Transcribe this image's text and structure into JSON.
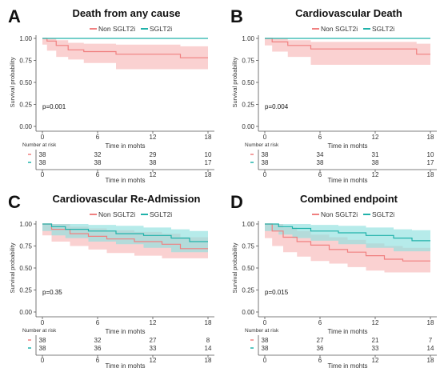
{
  "legend_labels": [
    "Non SGLT2i",
    "SGLT2i"
  ],
  "colors": {
    "non_sglt2i": "#f08080",
    "sglt2i": "#20b2aa",
    "non_band": "#f7b8b8",
    "sglt_band": "#8fe0de",
    "axis": "#555555",
    "text": "#333333"
  },
  "chart_data": [
    {
      "type": "line",
      "panel_letter": "A",
      "title": "Death from any cause",
      "xlabel": "Time in mohts",
      "ylabel": "Survival probability",
      "xlim": [
        0,
        18
      ],
      "ylim": [
        0,
        1
      ],
      "x_ticks": [
        0,
        6,
        12,
        18
      ],
      "y_ticks": [
        "0.00",
        "0.25",
        "0.50",
        "0.75",
        "1.00"
      ],
      "pvalue": "p=0.001",
      "risk_title": "Number at risk",
      "series": [
        {
          "name": "Non SGLT2i",
          "x": [
            0,
            0.5,
            1.5,
            2.8,
            4.5,
            8,
            15,
            18
          ],
          "y": [
            1.0,
            0.97,
            0.92,
            0.87,
            0.85,
            0.82,
            0.78,
            0.78
          ],
          "lower": [
            1.0,
            0.93,
            0.86,
            0.79,
            0.76,
            0.72,
            0.65,
            0.65
          ],
          "upper": [
            1.0,
            1.0,
            0.98,
            0.95,
            0.94,
            0.93,
            0.91,
            0.91
          ],
          "risk": [
            "38",
            "32",
            "29",
            "10"
          ]
        },
        {
          "name": "SGLT2i",
          "x": [
            0,
            18
          ],
          "y": [
            1.0,
            1.0
          ],
          "lower": [
            1.0,
            1.0
          ],
          "upper": [
            1.0,
            1.0
          ],
          "risk": [
            "38",
            "38",
            "38",
            "17"
          ]
        }
      ]
    },
    {
      "type": "line",
      "panel_letter": "B",
      "title": "Cardiovascular Death",
      "xlabel": "Time in mohts",
      "ylabel": "Survival probability",
      "xlim": [
        0,
        18
      ],
      "ylim": [
        0,
        1
      ],
      "x_ticks": [
        0,
        6,
        12,
        18
      ],
      "y_ticks": [
        "0.00",
        "0.25",
        "0.50",
        "0.75",
        "1.00"
      ],
      "pvalue": "p=0.004",
      "risk_title": "Number at risk",
      "series": [
        {
          "name": "Non SGLT2i",
          "x": [
            0,
            0.8,
            2.5,
            5,
            16.5,
            18
          ],
          "y": [
            1.0,
            0.96,
            0.92,
            0.88,
            0.82,
            0.82
          ],
          "lower": [
            1.0,
            0.92,
            0.85,
            0.79,
            0.7,
            0.7
          ],
          "upper": [
            1.0,
            1.0,
            0.98,
            0.96,
            0.94,
            0.94
          ],
          "risk": [
            "38",
            "34",
            "31",
            "10"
          ]
        },
        {
          "name": "SGLT2i",
          "x": [
            0,
            18
          ],
          "y": [
            1.0,
            1.0
          ],
          "lower": [
            1.0,
            1.0
          ],
          "upper": [
            1.0,
            1.0
          ],
          "risk": [
            "38",
            "38",
            "38",
            "17"
          ]
        }
      ]
    },
    {
      "type": "line",
      "panel_letter": "C",
      "title": "Cardiovascular Re-Admission",
      "xlabel": "Time in mohts",
      "ylabel": "Survival probability",
      "xlim": [
        0,
        18
      ],
      "ylim": [
        0,
        1
      ],
      "x_ticks": [
        0,
        6,
        12,
        18
      ],
      "y_ticks": [
        "0.00",
        "0.25",
        "0.50",
        "0.75",
        "1.00"
      ],
      "pvalue": "p=0.35",
      "risk_title": "Number at risk",
      "series": [
        {
          "name": "Non SGLT2i",
          "x": [
            0,
            1,
            3,
            5,
            7,
            10,
            13,
            15,
            18
          ],
          "y": [
            1.0,
            0.94,
            0.89,
            0.86,
            0.83,
            0.8,
            0.77,
            0.72,
            0.72
          ],
          "lower": [
            1.0,
            0.87,
            0.8,
            0.75,
            0.71,
            0.67,
            0.64,
            0.61,
            0.61
          ],
          "upper": [
            1.0,
            1.0,
            0.97,
            0.95,
            0.93,
            0.91,
            0.89,
            0.85,
            0.85
          ],
          "risk": [
            "38",
            "32",
            "27",
            "8"
          ]
        },
        {
          "name": "SGLT2i",
          "x": [
            0,
            1,
            2.5,
            5,
            8,
            11,
            14,
            16,
            18
          ],
          "y": [
            1.0,
            0.97,
            0.94,
            0.92,
            0.89,
            0.87,
            0.84,
            0.8,
            0.8
          ],
          "lower": [
            1.0,
            0.92,
            0.87,
            0.84,
            0.8,
            0.77,
            0.73,
            0.68,
            0.68
          ],
          "upper": [
            1.0,
            1.0,
            1.0,
            0.99,
            0.98,
            0.96,
            0.94,
            0.92,
            0.92
          ],
          "risk": [
            "38",
            "36",
            "33",
            "14"
          ]
        }
      ]
    },
    {
      "type": "line",
      "panel_letter": "D",
      "title": "Combined endpoint",
      "xlabel": "Time in mohts",
      "ylabel": "Survival probability",
      "xlim": [
        0,
        18
      ],
      "ylim": [
        0,
        1
      ],
      "x_ticks": [
        0,
        6,
        12,
        18
      ],
      "y_ticks": [
        "0.00",
        "0.25",
        "0.50",
        "0.75",
        "1.00"
      ],
      "pvalue": "p=0.015",
      "risk_title": "Number at risk",
      "series": [
        {
          "name": "Non SGLT2i",
          "x": [
            0,
            0.8,
            2,
            3.5,
            5,
            7,
            9,
            11,
            13,
            15,
            18
          ],
          "y": [
            1.0,
            0.92,
            0.85,
            0.8,
            0.76,
            0.71,
            0.68,
            0.64,
            0.6,
            0.58,
            0.58
          ],
          "lower": [
            1.0,
            0.84,
            0.75,
            0.68,
            0.63,
            0.58,
            0.55,
            0.51,
            0.47,
            0.45,
            0.45
          ],
          "upper": [
            1.0,
            1.0,
            0.96,
            0.92,
            0.88,
            0.85,
            0.82,
            0.78,
            0.75,
            0.73,
            0.73
          ],
          "risk": [
            "38",
            "27",
            "21",
            "7"
          ]
        },
        {
          "name": "SGLT2i",
          "x": [
            0,
            1.5,
            3,
            5,
            8,
            11,
            14,
            16,
            18
          ],
          "y": [
            1.0,
            0.97,
            0.95,
            0.92,
            0.9,
            0.87,
            0.84,
            0.81,
            0.81
          ],
          "lower": [
            1.0,
            0.92,
            0.88,
            0.84,
            0.81,
            0.77,
            0.73,
            0.69,
            0.69
          ],
          "upper": [
            1.0,
            1.0,
            1.0,
            0.99,
            0.98,
            0.96,
            0.94,
            0.93,
            0.93
          ],
          "risk": [
            "38",
            "36",
            "33",
            "14"
          ]
        }
      ]
    }
  ]
}
